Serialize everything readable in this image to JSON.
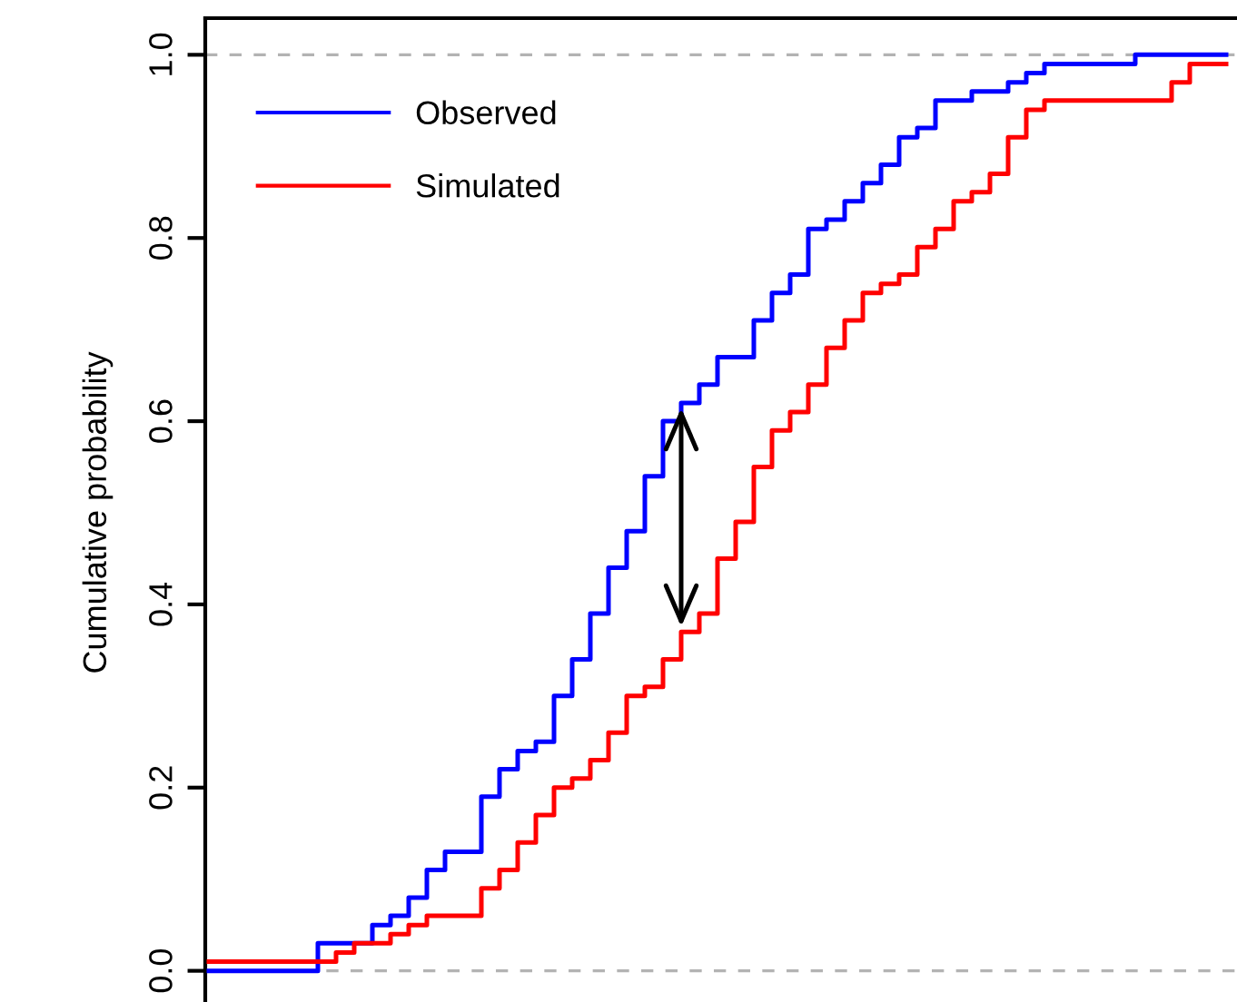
{
  "chart_data": {
    "type": "step",
    "ylabel": "Cumulative probability",
    "categories": [
      null,
      null,
      null,
      null,
      null,
      null,
      null,
      null,
      null,
      null,
      null,
      null,
      null,
      null,
      null,
      null,
      null,
      null,
      null,
      null,
      null,
      null,
      null,
      null,
      null,
      null,
      null,
      null,
      null,
      null,
      null,
      null,
      null,
      null,
      null,
      null,
      null,
      null,
      null,
      null,
      null,
      null,
      null,
      null,
      null,
      null,
      null,
      null,
      null,
      null,
      null,
      null,
      null,
      null,
      null,
      null,
      null
    ],
    "series": [
      {
        "name": "Observed",
        "color": "#0000ff",
        "values": [
          0,
          0,
          0,
          0,
          0,
          0,
          0.03,
          0.03,
          0.03,
          0.05,
          0.06,
          0.08,
          0.11,
          0.13,
          0.13,
          0.19,
          0.22,
          0.24,
          0.25,
          0.3,
          0.34,
          0.39,
          0.44,
          0.48,
          0.54,
          0.6,
          0.62,
          0.64,
          0.67,
          0.67,
          0.71,
          0.74,
          0.76,
          0.81,
          0.82,
          0.84,
          0.86,
          0.88,
          0.91,
          0.92,
          0.95,
          0.95,
          0.96,
          0.96,
          0.97,
          0.98,
          0.99,
          0.99,
          0.99,
          0.99,
          0.99,
          1,
          1,
          1,
          1,
          1,
          1
        ]
      },
      {
        "name": "Simulated",
        "color": "#ff0000",
        "values": [
          0.01,
          0.01,
          0.01,
          0.01,
          0.01,
          0.01,
          0.01,
          0.02,
          0.03,
          0.03,
          0.04,
          0.05,
          0.06,
          0.06,
          0.06,
          0.09,
          0.11,
          0.14,
          0.17,
          0.2,
          0.21,
          0.23,
          0.26,
          0.3,
          0.31,
          0.34,
          0.37,
          0.39,
          0.45,
          0.49,
          0.55,
          0.59,
          0.61,
          0.64,
          0.68,
          0.71,
          0.74,
          0.75,
          0.76,
          0.79,
          0.81,
          0.84,
          0.85,
          0.87,
          0.91,
          0.94,
          0.95,
          0.95,
          0.95,
          0.95,
          0.95,
          0.95,
          0.95,
          0.97,
          0.99,
          0.99,
          0.99
        ]
      }
    ],
    "ylim": [
      -0.04,
      1.04
    ],
    "yticks": [
      {
        "value": 0,
        "label": "0.0"
      },
      {
        "value": 0.2,
        "label": "0.2"
      },
      {
        "value": 0.4,
        "label": "0.4"
      },
      {
        "value": 0.6,
        "label": "0.6"
      },
      {
        "value": 0.8,
        "label": "0.8"
      },
      {
        "value": 1,
        "label": "1.0"
      }
    ],
    "ref_lines": [
      {
        "axis": "y",
        "value": 0,
        "color": "#b3b3b3",
        "line_style": "dashed"
      },
      {
        "axis": "y",
        "value": 1,
        "color": "#b3b3b3",
        "line_style": "dashed"
      }
    ],
    "legend": "top left",
    "grid": false,
    "tick_labels": "y"
  }
}
